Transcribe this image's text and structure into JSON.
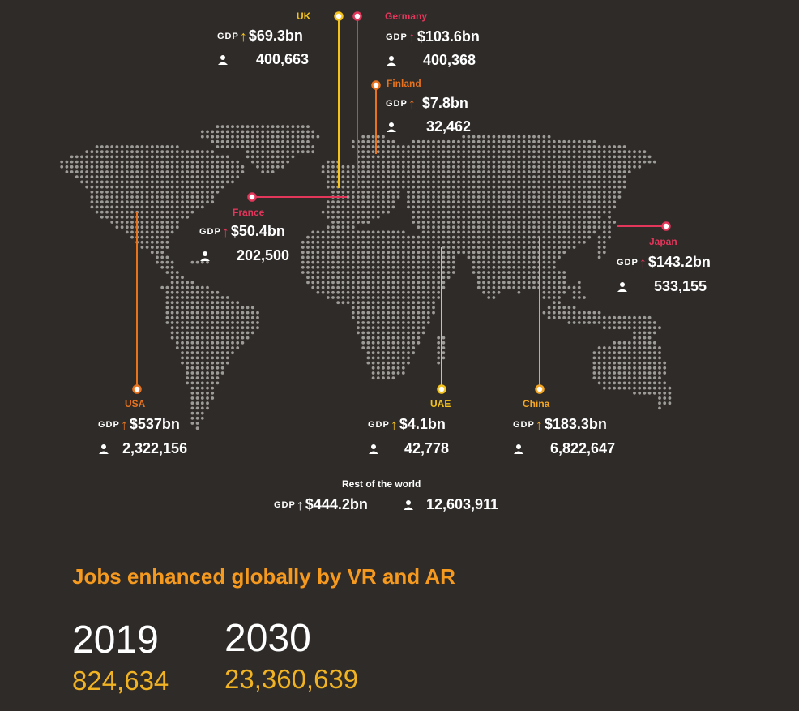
{
  "colors": {
    "background": "#2e2b28",
    "dot": "#9e9c98",
    "uk": "#f4c21c",
    "germany": "#e3365b",
    "finland": "#e8731f",
    "france": "#e3365b",
    "japan": "#e3365b",
    "usa": "#e8731f",
    "uae": "#f4c21c",
    "china": "#f5a623",
    "headline": "#f59a1f",
    "jobs": "#f2b323"
  },
  "icons": {
    "employment": "person-icon",
    "gdp_increase": "up-arrow-icon"
  },
  "gdp_label": "GDP",
  "gdp_arrow": "↑",
  "countries": [
    {
      "key": "uk",
      "name": "UK",
      "gdp": "$69.3bn",
      "employment": "400,663"
    },
    {
      "key": "germany",
      "name": "Germany",
      "gdp": "$103.6bn",
      "employment": "400,368"
    },
    {
      "key": "finland",
      "name": "Finland",
      "gdp": "$7.8bn",
      "employment": "32,462"
    },
    {
      "key": "france",
      "name": "France",
      "gdp": "$50.4bn",
      "employment": "202,500"
    },
    {
      "key": "japan",
      "name": "Japan",
      "gdp": "$143.2bn",
      "employment": "533,155"
    },
    {
      "key": "usa",
      "name": "USA",
      "gdp": "$537bn",
      "employment": "2,322,156"
    },
    {
      "key": "uae",
      "name": "UAE",
      "gdp": "$4.1bn",
      "employment": "42,778"
    },
    {
      "key": "china",
      "name": "China",
      "gdp": "$183.3bn",
      "employment": "6,822,647"
    }
  ],
  "rest_of_world": {
    "title": "Rest of the world",
    "gdp": "$444.2bn",
    "employment": "12,603,911"
  },
  "headline": "Jobs enhanced globally by VR and AR",
  "years": [
    {
      "year": "2019",
      "jobs": "824,634"
    },
    {
      "year": "2030",
      "jobs": "23,360,639"
    }
  ]
}
